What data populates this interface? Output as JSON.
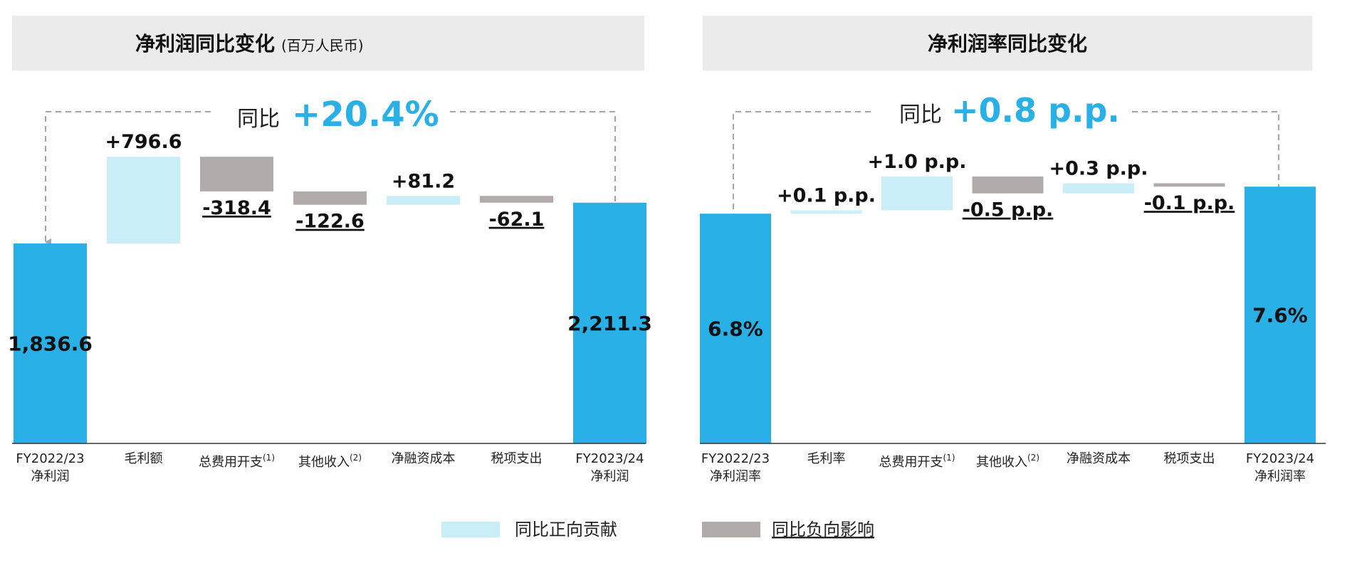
{
  "colors": {
    "total_bar": "#29B0E6",
    "positive": "#C9EEF8",
    "negative": "#B1ABAB",
    "yoy_highlight": "#29B0E6",
    "panel_header_bg": "#EBEBEB",
    "connector": "#A6A6A6",
    "axis": "#333333"
  },
  "legend": {
    "positive_label": "同比正向贡献",
    "negative_label": "同比负向影响"
  },
  "chart_data": [
    {
      "type": "waterfall",
      "title": "净利润同比变化",
      "title_unit": "(百万人民币)",
      "yoy_prefix": "同比",
      "yoy_value": "+20.4%",
      "categories": [
        [
          "FY2022/23",
          "净利润"
        ],
        [
          "毛利额"
        ],
        [
          "总费用开支",
          "(1)"
        ],
        [
          "其他收入",
          "(2)"
        ],
        [
          "净融资成本"
        ],
        [
          "税项支出"
        ],
        [
          "FY2023/24",
          "净利润"
        ]
      ],
      "values": [
        1836.6,
        796.6,
        -318.4,
        -122.6,
        81.2,
        -62.1,
        2211.3
      ],
      "kinds": [
        "total",
        "pos",
        "neg",
        "neg",
        "pos",
        "neg",
        "total"
      ],
      "labels": [
        "1,836.6",
        "+796.6",
        "-318.4",
        "-122.6",
        "+81.2",
        "-62.1",
        "2,211.3"
      ],
      "ylim": [
        0,
        2700
      ]
    },
    {
      "type": "waterfall",
      "title": "净利润率同比变化",
      "title_unit": "",
      "yoy_prefix": "同比",
      "yoy_value": "+0.8 p.p.",
      "categories": [
        [
          "FY2022/23",
          "净利润率"
        ],
        [
          "毛利率"
        ],
        [
          "总费用开支",
          "(1)"
        ],
        [
          "其他收入",
          "(2)"
        ],
        [
          "净融资成本"
        ],
        [
          "税项支出"
        ],
        [
          "FY2023/24",
          "净利润率"
        ]
      ],
      "values": [
        6.8,
        0.1,
        1.0,
        -0.5,
        0.3,
        -0.1,
        7.6
      ],
      "kinds": [
        "total",
        "pos",
        "pos",
        "neg",
        "pos",
        "neg",
        "total"
      ],
      "labels": [
        "6.8%",
        "+0.1 p.p.",
        "+1.0 p.p.",
        "-0.5 p.p.",
        "+0.3 p.p.",
        "-0.1 p.p.",
        "7.6%"
      ],
      "ylim": [
        0,
        8.7
      ]
    }
  ]
}
